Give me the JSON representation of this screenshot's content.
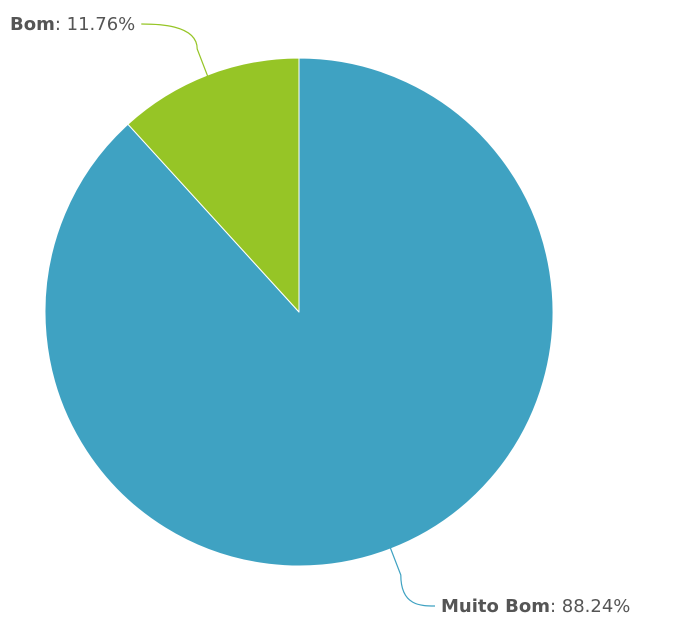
{
  "chart_data": {
    "type": "pie",
    "slices": [
      {
        "label": "Muito Bom",
        "value": 88.24,
        "value_text": "88.24%",
        "color": "#3fa2c2"
      },
      {
        "label": "Bom",
        "value": 11.76,
        "value_text": "11.76%",
        "color": "#96c526"
      }
    ],
    "start_angle": "12 o'clock",
    "direction": "clockwise",
    "data_labels": "outside with leader lines"
  }
}
